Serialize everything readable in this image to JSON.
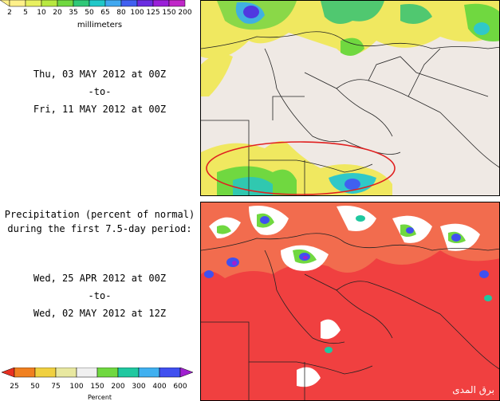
{
  "top_panel": {
    "legend_labels": [
      "2",
      "5",
      "10",
      "20",
      "35",
      "50",
      "65",
      "80",
      "100",
      "125",
      "150",
      "200"
    ],
    "legend_colors": [
      "#fff08a",
      "#e8f060",
      "#b8e840",
      "#70d840",
      "#30c878",
      "#20c8c8",
      "#40a8f0",
      "#4060f0",
      "#6a2ce0",
      "#9a20d8",
      "#c028c8",
      "#e040c0"
    ],
    "unit": "millimeters",
    "date_start": "Thu, 03 MAY 2012 at 00Z",
    "separator": "-to-",
    "date_end": "Fri, 11 MAY 2012 at 00Z"
  },
  "bottom_panel": {
    "title_line1": "Precipitation (percent of normal)",
    "title_line2": "during the first 7.5-day period:",
    "date_start": "Wed, 25 APR 2012 at 00Z",
    "separator": "-to-",
    "date_end": "Wed, 02 MAY 2012 at 12Z",
    "legend_labels": [
      "25",
      "50",
      "75",
      "100",
      "150",
      "200",
      "300",
      "400",
      "600"
    ],
    "legend_colors": [
      "#e83020",
      "#f08020",
      "#f0d040",
      "#e8e8a0",
      "#f0f0f0",
      "#70d840",
      "#20c8a0",
      "#40b0f0",
      "#4050f0",
      "#a020d0"
    ],
    "unit": "Percent"
  },
  "watermark": "برق المدى"
}
